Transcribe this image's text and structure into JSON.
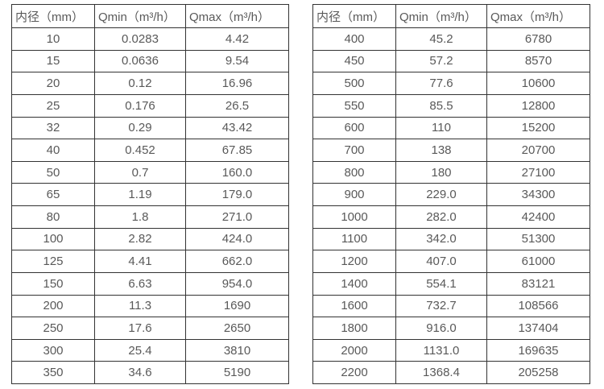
{
  "page": {
    "background_color": "#ffffff",
    "border_color": "#333333",
    "text_color": "#595959"
  },
  "chart_data": [
    {
      "type": "table",
      "title": "",
      "headers": [
        "内径（mm）",
        "Qmin（m³/h）",
        "Qmax（m³/h）"
      ],
      "rows": [
        [
          "10",
          "0.0283",
          "4.42"
        ],
        [
          "15",
          "0.0636",
          "9.54"
        ],
        [
          "20",
          "0.12",
          "16.96"
        ],
        [
          "25",
          "0.176",
          "26.5"
        ],
        [
          "32",
          "0.29",
          "43.42"
        ],
        [
          "40",
          "0.452",
          "67.85"
        ],
        [
          "50",
          "0.7",
          "160.0"
        ],
        [
          "65",
          "1.19",
          "179.0"
        ],
        [
          "80",
          "1.8",
          "271.0"
        ],
        [
          "100",
          "2.82",
          "424.0"
        ],
        [
          "125",
          "4.41",
          "662.0"
        ],
        [
          "150",
          "6.63",
          "954.0"
        ],
        [
          "200",
          "11.3",
          "1690"
        ],
        [
          "250",
          "17.6",
          "2650"
        ],
        [
          "300",
          "25.4",
          "3810"
        ],
        [
          "350",
          "34.6",
          "5190"
        ]
      ]
    },
    {
      "type": "table",
      "title": "",
      "headers": [
        "内径（mm）",
        "Qmin（m³/h）",
        "Qmax（m³/h）"
      ],
      "rows": [
        [
          "400",
          "45.2",
          "6780"
        ],
        [
          "450",
          "57.2",
          "8570"
        ],
        [
          "500",
          "77.6",
          "10600"
        ],
        [
          "550",
          "85.5",
          "12800"
        ],
        [
          "600",
          "110",
          "15200"
        ],
        [
          "700",
          "138",
          "20700"
        ],
        [
          "800",
          "180",
          "27100"
        ],
        [
          "900",
          "229.0",
          "34300"
        ],
        [
          "1000",
          "282.0",
          "42400"
        ],
        [
          "1100",
          "342.0",
          "51300"
        ],
        [
          "1200",
          "407.0",
          "61000"
        ],
        [
          "1400",
          "554.1",
          "83121"
        ],
        [
          "1600",
          "732.7",
          "108566"
        ],
        [
          "1800",
          "916.0",
          "137404"
        ],
        [
          "2000",
          "1131.0",
          "169635"
        ],
        [
          "2200",
          "1368.4",
          "205258"
        ]
      ]
    }
  ]
}
